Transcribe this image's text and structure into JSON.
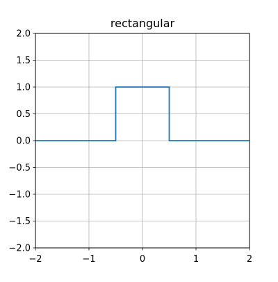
{
  "chart_data": {
    "type": "line",
    "title": "rectangular",
    "xlabel": "",
    "ylabel": "",
    "xlim": [
      -2,
      2
    ],
    "ylim": [
      -2,
      2
    ],
    "grid": true,
    "x_ticks": [
      -2,
      -1,
      0,
      1,
      2
    ],
    "x_tick_labels": [
      "−2",
      "−1",
      "0",
      "1",
      "2"
    ],
    "y_ticks": [
      -2.0,
      -1.5,
      -1.0,
      -0.5,
      0.0,
      0.5,
      1.0,
      1.5,
      2.0
    ],
    "y_tick_labels": [
      "−2.0",
      "−1.5",
      "−1.0",
      "−0.5",
      "0.0",
      "0.5",
      "1.0",
      "1.5",
      "2.0"
    ],
    "series": [
      {
        "name": "rectangular",
        "color": "#1f77b4",
        "x": [
          -2,
          -0.5,
          -0.5,
          0.5,
          0.5,
          2
        ],
        "y": [
          0,
          0,
          1,
          1,
          0,
          0
        ]
      }
    ]
  }
}
